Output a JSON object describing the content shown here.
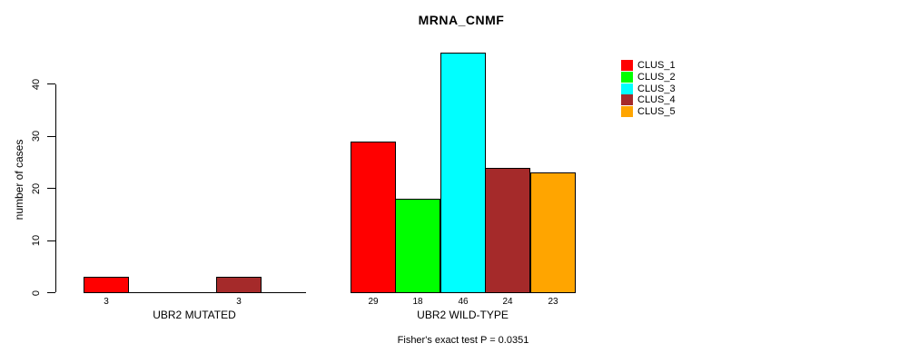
{
  "chart_data": {
    "type": "bar",
    "title": "MRNA_CNMF",
    "ylabel": "number of cases",
    "ylim": [
      0,
      46
    ],
    "yticks": [
      0,
      10,
      20,
      30,
      40
    ],
    "grid": false,
    "categories": [
      "CLUS_1",
      "CLUS_2",
      "CLUS_3",
      "CLUS_4",
      "CLUS_5"
    ],
    "groups": [
      {
        "label": "UBR2 MUTATED",
        "values": [
          3,
          0,
          0,
          3,
          0
        ]
      },
      {
        "label": "UBR2 WILD-TYPE",
        "values": [
          29,
          18,
          46,
          24,
          23
        ]
      }
    ],
    "series_colors": [
      "#FF0000",
      "#00FF00",
      "#00FFFF",
      "#A52A2A",
      "#FFA500"
    ],
    "legend": {
      "position": "top-right",
      "entries": [
        "CLUS_1",
        "CLUS_2",
        "CLUS_3",
        "CLUS_4",
        "CLUS_5"
      ]
    },
    "annotation": "Fisher's exact test P = 0.0351"
  }
}
